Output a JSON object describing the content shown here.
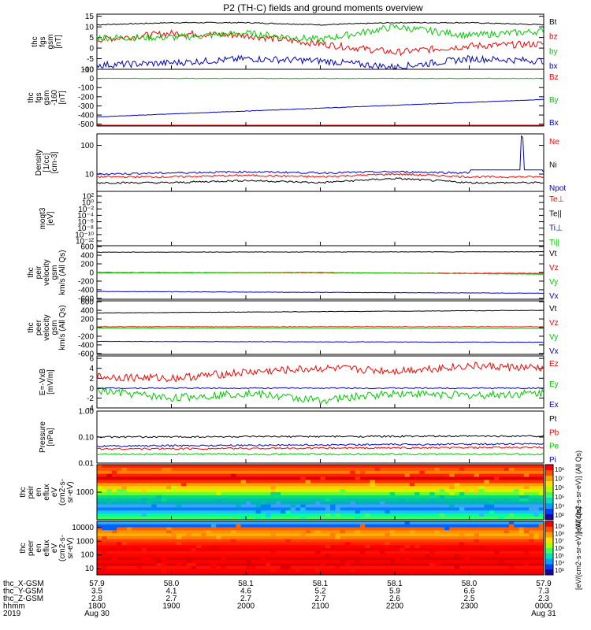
{
  "title": "P2 (TH-C) fields and ground moments overview",
  "colors": {
    "black": "#000000",
    "red": "#ff0000",
    "green": "#00cc00",
    "blue": "#0000cc"
  },
  "chart_data": [
    {
      "type": "line",
      "ylabel": [
        "thc",
        "fgs",
        "gsm",
        "[nT]"
      ],
      "yticks": [
        "15",
        "10",
        "5",
        "0",
        "-5",
        "-10"
      ],
      "ylim": [
        -10,
        16
      ],
      "legend": [
        {
          "name": "Bt",
          "color": "black"
        },
        {
          "name": "bz",
          "color": "red"
        },
        {
          "name": "by",
          "color": "green"
        },
        {
          "name": "bx",
          "color": "blue"
        }
      ],
      "series": [
        {
          "name": "Bt",
          "color": "black",
          "x": [
            0,
            1,
            2,
            3,
            4,
            5,
            6
          ],
          "values": [
            11,
            12,
            12,
            11,
            12,
            12,
            11
          ]
        },
        {
          "name": "bz",
          "color": "red",
          "x": [
            0,
            1,
            2,
            3,
            4,
            5,
            6
          ],
          "values": [
            4,
            7,
            6,
            2,
            -2,
            1,
            2
          ]
        },
        {
          "name": "by",
          "color": "green",
          "x": [
            0,
            1,
            2,
            3,
            4,
            5,
            6
          ],
          "values": [
            5,
            5,
            7,
            4,
            10,
            6,
            8
          ]
        },
        {
          "name": "bx",
          "color": "blue",
          "x": [
            0,
            1,
            2,
            3,
            4,
            5,
            6
          ],
          "values": [
            -8,
            -7,
            -5,
            -6,
            -9,
            -5,
            -6
          ]
        }
      ]
    },
    {
      "type": "line",
      "ylabel": [
        "thc",
        "fgs",
        "gsm",
        "-160",
        "[nT]"
      ],
      "yticks": [
        "100",
        "0",
        "-100",
        "-200",
        "-300",
        "-400",
        "-500"
      ],
      "ylim": [
        -520,
        100
      ],
      "legend": [
        {
          "name": "Bz",
          "color": "red"
        },
        {
          "name": "By",
          "color": "green"
        },
        {
          "name": "Bx",
          "color": "blue"
        }
      ],
      "series": [
        {
          "name": "Bz",
          "color": "red",
          "x": [
            0,
            6
          ],
          "values": [
            -520,
            -520
          ]
        },
        {
          "name": "By",
          "color": "green",
          "x": [
            0,
            6
          ],
          "values": [
            0,
            0
          ]
        },
        {
          "name": "Bx",
          "color": "blue",
          "x": [
            0,
            6
          ],
          "values": [
            -420,
            -230
          ]
        }
      ]
    },
    {
      "type": "line",
      "ylabel": [
        "Density",
        "[1/cc]",
        "[cm-3]"
      ],
      "yticks": [
        "100",
        "10"
      ],
      "yscale": "log",
      "ylim": [
        2.5,
        250
      ],
      "legend": [
        {
          "name": "Ne",
          "color": "red"
        },
        {
          "name": "Ni",
          "color": "black"
        },
        {
          "name": "Npot",
          "color": "blue"
        }
      ],
      "series": [
        {
          "name": "Ne",
          "color": "red",
          "x": [
            0,
            1,
            2,
            3,
            4,
            5,
            6
          ],
          "values": [
            8,
            8,
            9,
            8,
            10,
            8,
            8
          ]
        },
        {
          "name": "Ni",
          "color": "black",
          "x": [
            0,
            1,
            2,
            3,
            4,
            5,
            6
          ],
          "values": [
            5,
            5,
            6,
            5,
            7,
            5,
            5
          ]
        },
        {
          "name": "Npot",
          "color": "blue",
          "x": [
            0,
            1,
            2,
            3,
            4,
            5,
            5.7,
            6
          ],
          "values": [
            10,
            11,
            12,
            11,
            12,
            11,
            200,
            11
          ]
        }
      ]
    },
    {
      "type": "line",
      "ylabel": [
        "moqt3",
        "[eV]"
      ],
      "yticks": [
        "10²",
        "10⁰",
        "10⁻²",
        "10⁻⁴",
        "10⁻⁶",
        "10⁻⁸",
        "10⁻¹⁰",
        "10⁻¹²"
      ],
      "legend": [
        {
          "name": "Te⊥",
          "color": "red"
        },
        {
          "name": "Te||",
          "color": "black"
        },
        {
          "name": "Ti⊥",
          "color": "blue"
        },
        {
          "name": "Ti||",
          "color": "green"
        }
      ],
      "series": []
    },
    {
      "type": "line",
      "ylabel": [
        "thc",
        "peir",
        "velocity",
        "gsm",
        "km/s (All Qs)"
      ],
      "yticks": [
        "600",
        "400",
        "200",
        "0",
        "-200",
        "-400",
        "-600"
      ],
      "ylim": [
        -620,
        620
      ],
      "legend": [
        {
          "name": "Vt",
          "color": "black"
        },
        {
          "name": "Vz",
          "color": "red"
        },
        {
          "name": "Vy",
          "color": "green"
        },
        {
          "name": "Vx",
          "color": "blue"
        }
      ],
      "series": [
        {
          "name": "Vt",
          "color": "black",
          "x": [
            0,
            6
          ],
          "values": [
            470,
            480
          ]
        },
        {
          "name": "Vz",
          "color": "red",
          "x": [
            0,
            6
          ],
          "values": [
            0,
            -20
          ]
        },
        {
          "name": "Vy",
          "color": "green",
          "x": [
            0,
            3,
            6
          ],
          "values": [
            -10,
            0,
            -40
          ]
        },
        {
          "name": "Vx",
          "color": "blue",
          "x": [
            0,
            3,
            6
          ],
          "values": [
            -440,
            -460,
            -480
          ]
        }
      ]
    },
    {
      "type": "line",
      "ylabel": [
        "thc",
        "peer",
        "velocity",
        "gsm",
        "km/s (All Qs)"
      ],
      "yticks": [
        "600",
        "400",
        "200",
        "0",
        "-200",
        "-400",
        "-600"
      ],
      "ylim": [
        -620,
        620
      ],
      "legend": [
        {
          "name": "Vt",
          "color": "black"
        },
        {
          "name": "Vz",
          "color": "red"
        },
        {
          "name": "Vy",
          "color": "green"
        },
        {
          "name": "Vx",
          "color": "blue"
        }
      ],
      "series": [
        {
          "name": "Vt",
          "color": "black",
          "x": [
            0,
            6
          ],
          "values": [
            340,
            400
          ]
        },
        {
          "name": "Vz",
          "color": "red",
          "x": [
            0,
            6
          ],
          "values": [
            20,
            20
          ]
        },
        {
          "name": "Vy",
          "color": "green",
          "x": [
            0,
            6
          ],
          "values": [
            -10,
            -20
          ]
        },
        {
          "name": "Vx",
          "color": "blue",
          "x": [
            0,
            6
          ],
          "values": [
            -320,
            -340
          ]
        }
      ]
    },
    {
      "type": "line",
      "ylabel": [
        "E=-VxB",
        "[mV/m]"
      ],
      "yticks": [
        "6",
        "4",
        "2",
        "0",
        "-2",
        "-4"
      ],
      "ylim": [
        -4,
        6.5
      ],
      "legend": [
        {
          "name": "Ez",
          "color": "red"
        },
        {
          "name": "Ey",
          "color": "green"
        },
        {
          "name": "Ex",
          "color": "blue"
        }
      ],
      "series": [
        {
          "name": "Ez",
          "color": "red",
          "x": [
            0,
            1,
            2,
            3,
            4,
            5,
            6
          ],
          "values": [
            2.3,
            2,
            3.2,
            4,
            3.5,
            4.5,
            4
          ]
        },
        {
          "name": "Ey",
          "color": "green",
          "x": [
            0,
            1,
            2,
            3,
            4,
            5,
            6
          ],
          "values": [
            -0.5,
            -2,
            -1,
            -2.5,
            -1,
            -1.5,
            -1
          ]
        },
        {
          "name": "Ex",
          "color": "blue",
          "x": [
            0,
            6
          ],
          "values": [
            0,
            0
          ]
        }
      ]
    },
    {
      "type": "line",
      "ylabel": [
        "Pressure",
        "[nPa]"
      ],
      "yticks": [
        "1.00",
        "0.10",
        "0.01"
      ],
      "yscale": "log",
      "ylim": [
        0.01,
        1
      ],
      "legend": [
        {
          "name": "Pt",
          "color": "black"
        },
        {
          "name": "Pb",
          "color": "red"
        },
        {
          "name": "Pe",
          "color": "green"
        },
        {
          "name": "Pi",
          "color": "blue"
        }
      ],
      "series": [
        {
          "name": "Pt",
          "color": "black",
          "x": [
            0,
            6
          ],
          "values": [
            0.1,
            0.11
          ]
        },
        {
          "name": "Pb",
          "color": "red",
          "x": [
            0,
            6
          ],
          "values": [
            0.035,
            0.04
          ]
        },
        {
          "name": "Pe",
          "color": "green",
          "x": [
            0,
            6
          ],
          "values": [
            0.022,
            0.022
          ]
        },
        {
          "name": "Pi",
          "color": "blue",
          "x": [
            0,
            6
          ],
          "values": [
            0.045,
            0.055
          ]
        }
      ]
    },
    {
      "type": "heatmap",
      "ylabel": [
        "thc",
        "peir",
        "en",
        "eflux",
        "eV",
        "(cm2-s-",
        "sr-eV)"
      ],
      "yticks": [
        "1000"
      ],
      "colorbar_label": "[eV/(cm2-s-sr-eV)] (All Qs)",
      "colorbar_ticks": [
        "10⁸",
        "10⁷",
        "10⁶",
        "10⁵",
        "10⁴",
        "10³"
      ]
    },
    {
      "type": "heatmap",
      "ylabel": [
        "thc",
        "peer",
        "en",
        "eflux",
        "eV",
        "(cm2-s-",
        "sr-eV)"
      ],
      "yticks": [
        "10000",
        "1000",
        "100",
        "10"
      ],
      "colorbar_label": "[eV/(cm2-s-sr-eV)] (All Qs)",
      "colorbar_ticks": [
        "10⁹",
        "10⁸",
        "10⁷",
        "10⁶",
        "10⁵",
        "10⁴",
        "10³"
      ]
    }
  ],
  "xaxis": {
    "rows": [
      {
        "label": "thc_X-GSM",
        "values": [
          "57.9",
          "58.0",
          "58.1",
          "58.1",
          "58.1",
          "58.0",
          "57.9"
        ]
      },
      {
        "label": "thc_Y-GSM",
        "values": [
          "3.5",
          "4.1",
          "4.6",
          "5.2",
          "5.9",
          "6.6",
          "7.3"
        ]
      },
      {
        "label": "thc_Z-GSM",
        "values": [
          "2.8",
          "2.7",
          "2.7",
          "2.7",
          "2.6",
          "2.5",
          "2.3"
        ]
      },
      {
        "label": "hhmm",
        "values": [
          "1800",
          "1900",
          "2000",
          "2100",
          "2200",
          "2300",
          "0000"
        ]
      },
      {
        "label": "2019",
        "values": [
          "Aug 30",
          "",
          "",
          "",
          "",
          "",
          "Aug 31"
        ]
      }
    ]
  }
}
